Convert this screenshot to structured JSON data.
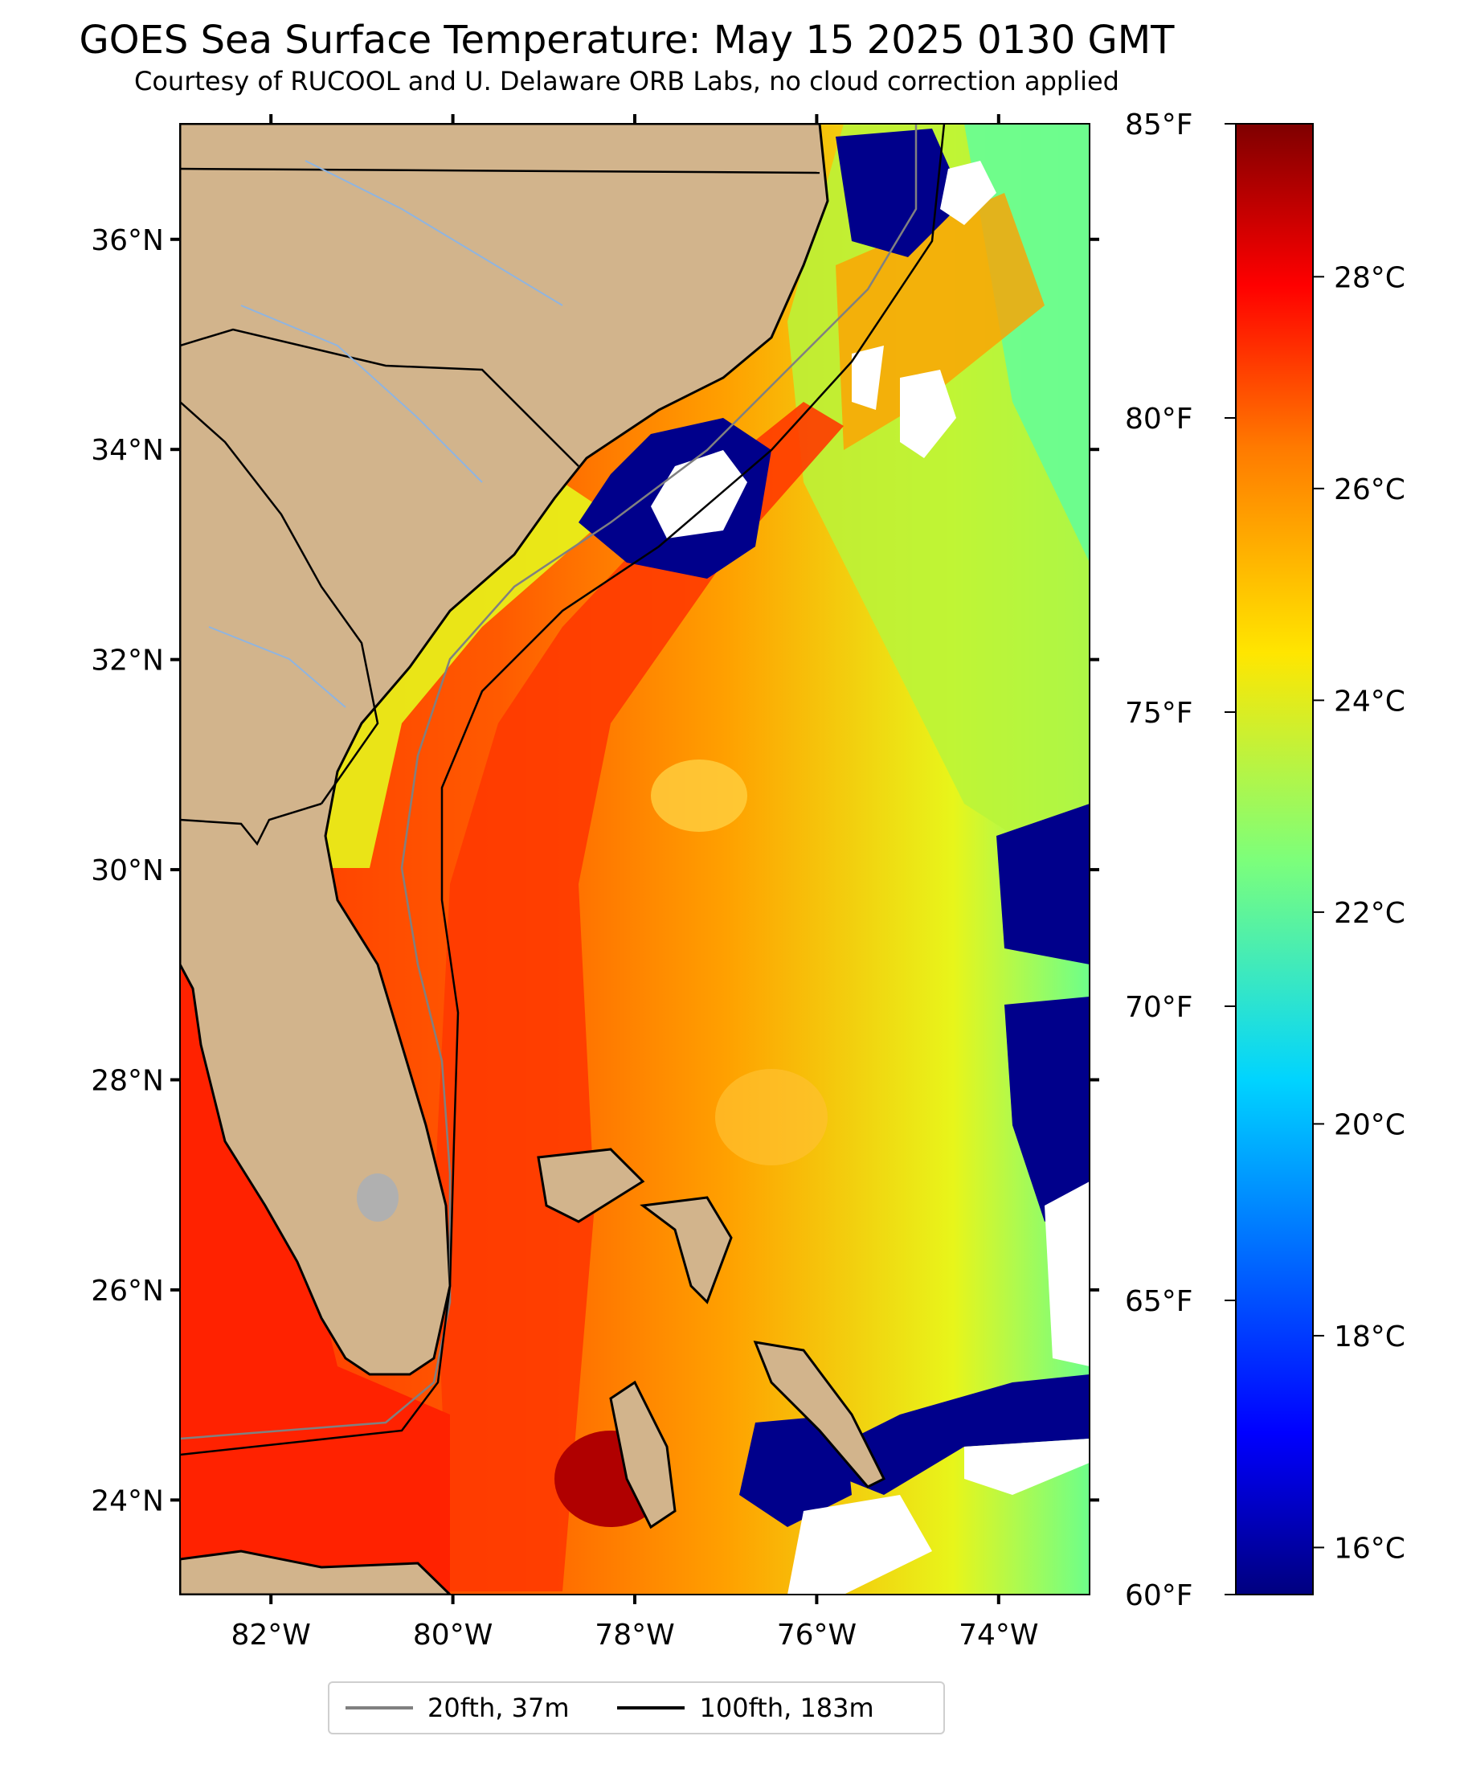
{
  "title": "GOES Sea Surface Temperature: May 15 2025 0130 GMT",
  "subtitle": "Courtesy of RUCOOL and U. Delaware ORB Labs, no cloud correction applied",
  "map": {
    "lon_range": [
      -83,
      -73
    ],
    "lat_range": [
      23.1,
      37.1
    ],
    "lat_ticks": [
      "36°N",
      "34°N",
      "32°N",
      "30°N",
      "28°N",
      "26°N",
      "24°N"
    ],
    "lon_ticks": [
      "82°W",
      "80°W",
      "78°W",
      "76°W",
      "74°W"
    ],
    "land_color": "#d2b48c",
    "cloud_color": "#ffffff",
    "features": [
      "Florida",
      "Georgia",
      "South Carolina",
      "North Carolina",
      "Bahamas",
      "Gulf Stream",
      "Cuba"
    ]
  },
  "colorbar": {
    "celsius_ticks": [
      "28°C",
      "26°C",
      "24°C",
      "22°C",
      "20°C",
      "18°C",
      "16°C"
    ],
    "fahrenheit_ticks": [
      "85°F",
      "80°F",
      "75°F",
      "70°F",
      "65°F",
      "60°F"
    ],
    "colormap": "jet",
    "range_f": [
      60,
      85
    ]
  },
  "legend": {
    "items": [
      {
        "label": "20fth, 37m",
        "color": "#808080"
      },
      {
        "label": "100fth, 183m",
        "color": "#000000"
      }
    ]
  }
}
